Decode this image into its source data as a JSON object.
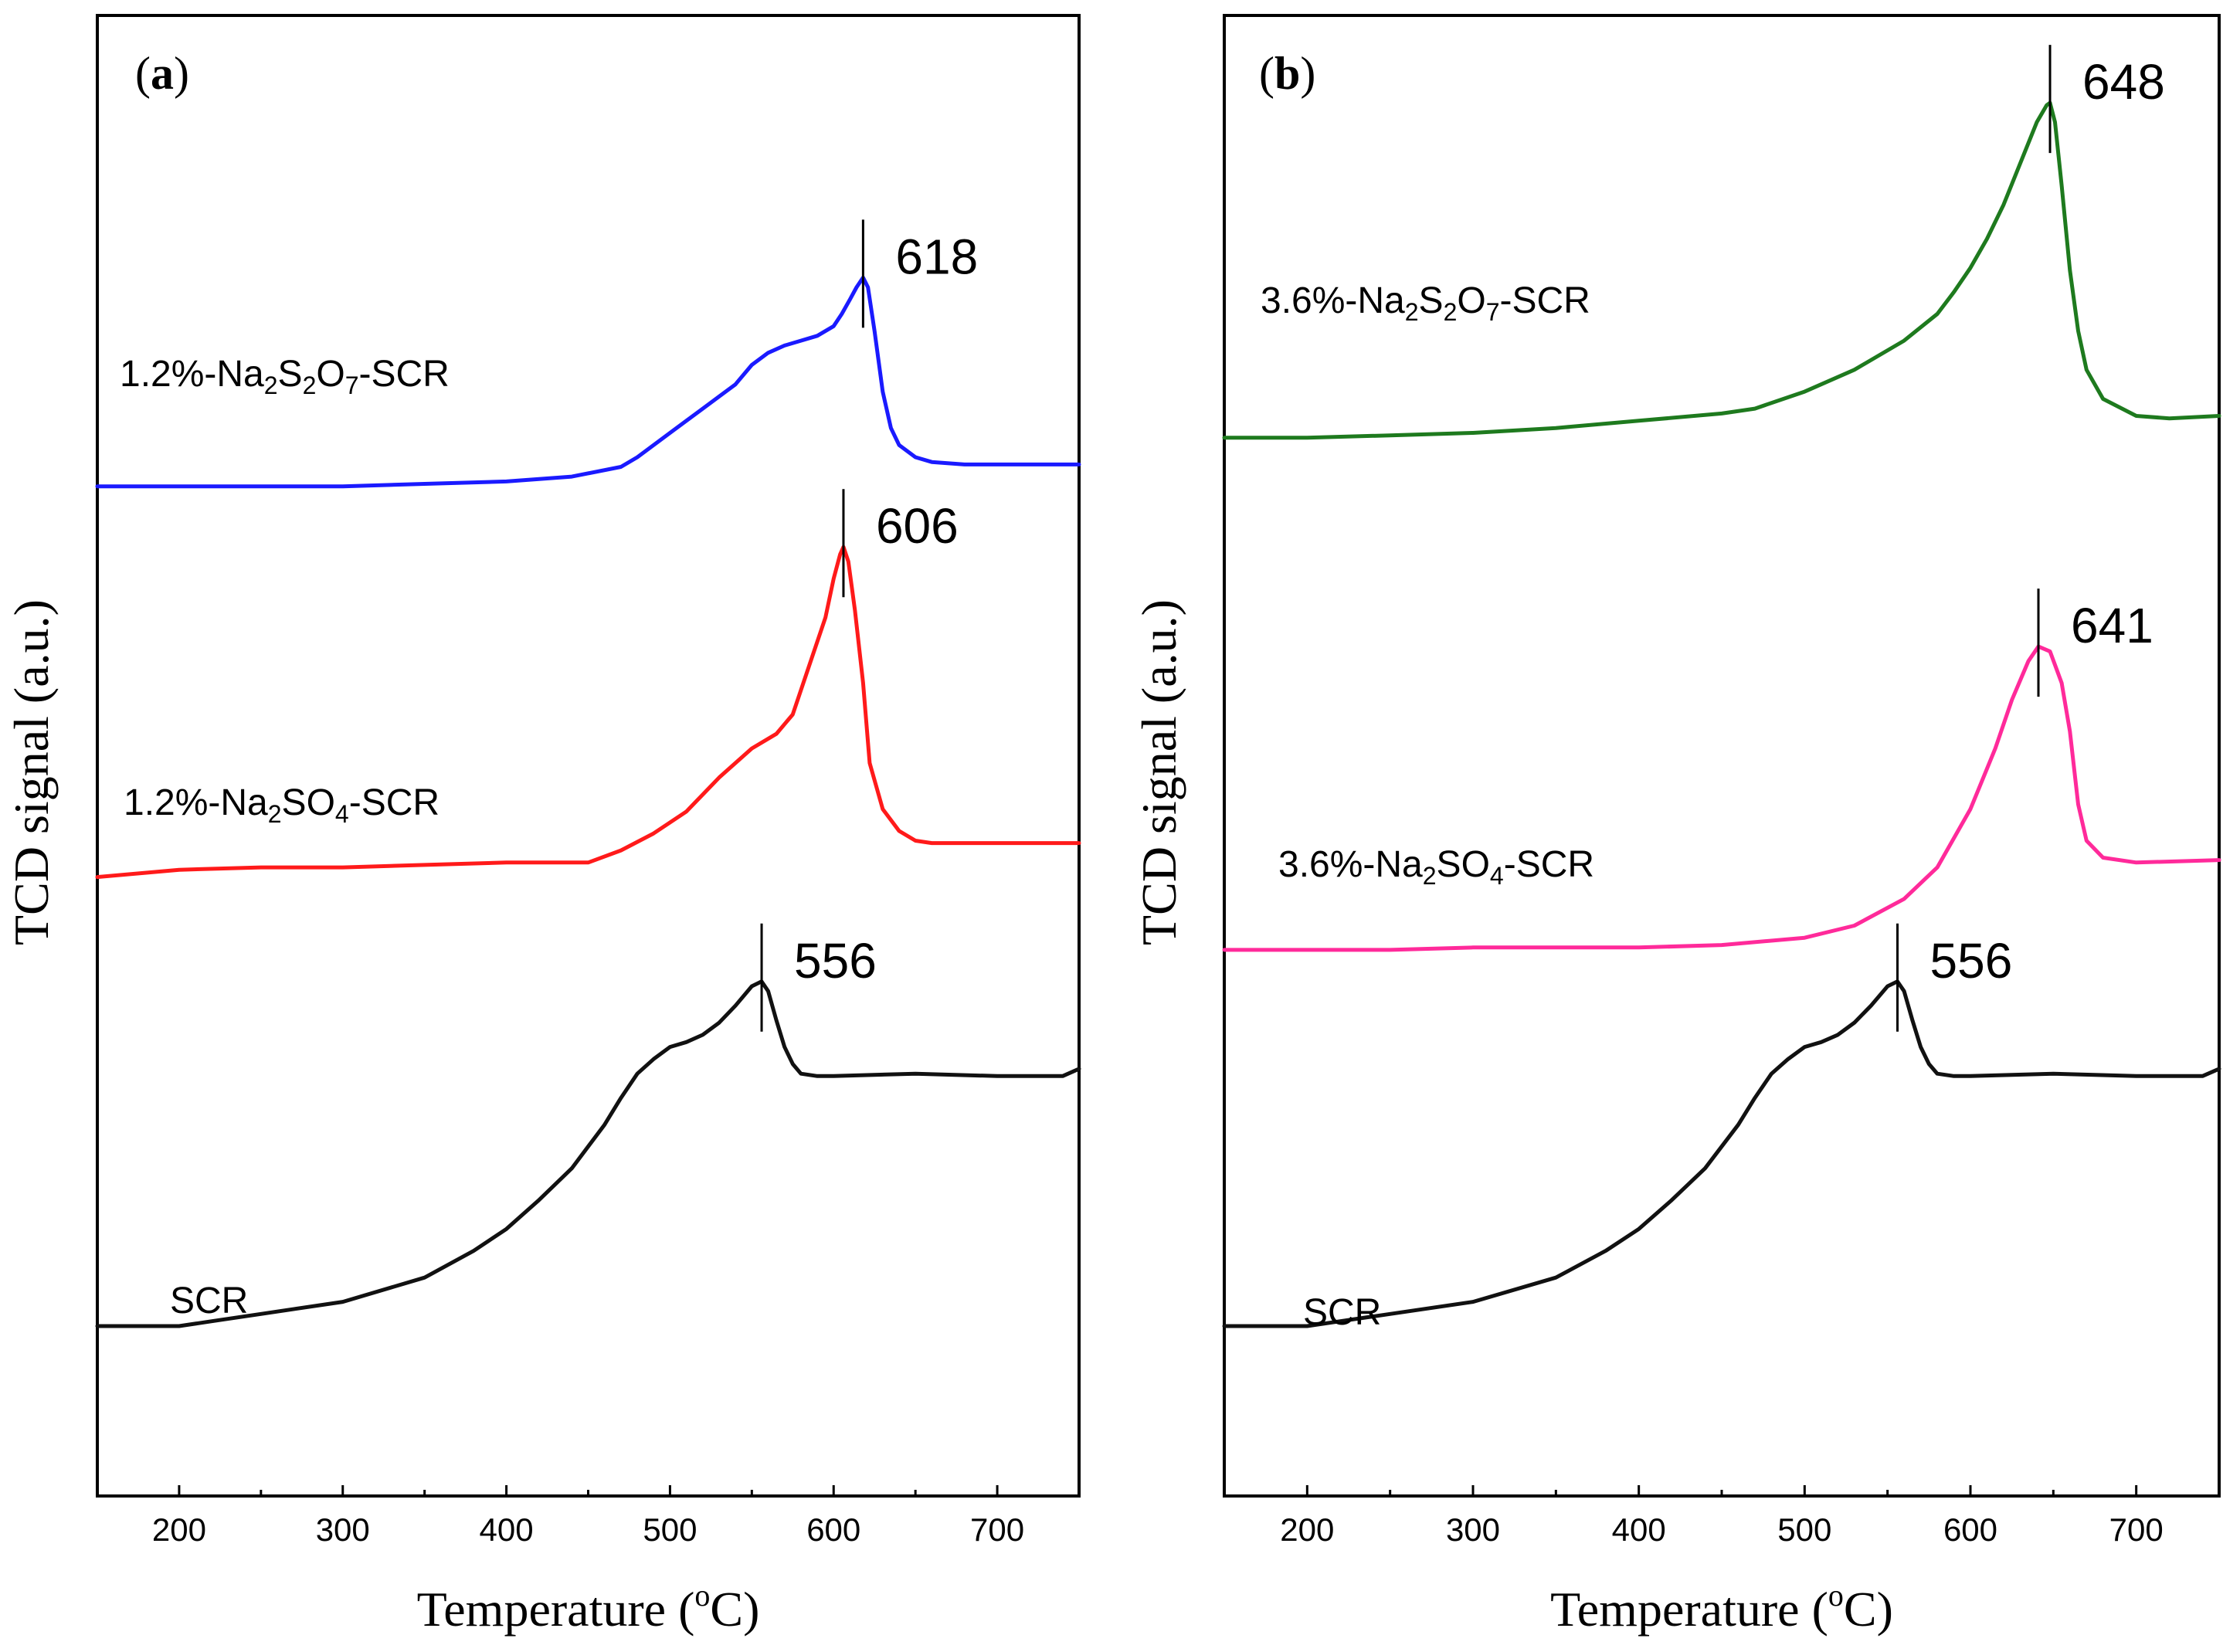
{
  "chart_data": [
    {
      "type": "line",
      "panel_label": "a",
      "xlabel": "Temperature (oC)",
      "xlabel_main": "Temperature (",
      "xlabel_sup": "o",
      "xlabel_end": "C)",
      "ylabel": "TCD signal (a.u.)",
      "xlim": [
        150,
        750
      ],
      "xticks": [
        "200",
        "300",
        "400",
        "500",
        "600",
        "700"
      ],
      "y_units": "arbitrary (stacked, offset)",
      "series": [
        {
          "name": "1.2%-Na2S2O7-SCR",
          "label_parts": [
            [
              "1.2%-Na",
              ""
            ],
            [
              "2",
              "sub"
            ],
            [
              "S",
              ""
            ],
            [
              "2",
              "sub"
            ],
            [
              "O",
              ""
            ],
            [
              "7",
              "sub"
            ],
            [
              "-SCR",
              ""
            ]
          ],
          "color": "#1a1aff",
          "peak_label": "618",
          "peak_x": 618,
          "x": [
            150,
            200,
            250,
            300,
            350,
            400,
            440,
            470,
            480,
            500,
            520,
            540,
            550,
            560,
            570,
            580,
            590,
            600,
            605,
            610,
            614,
            618,
            621,
            625,
            630,
            635,
            640,
            650,
            660,
            680,
            700,
            720,
            750
          ],
          "y": [
            3.86,
            3.86,
            3.86,
            3.86,
            3.87,
            3.88,
            3.9,
            3.94,
            3.98,
            4.08,
            4.18,
            4.28,
            4.36,
            4.41,
            4.44,
            4.46,
            4.48,
            4.52,
            4.57,
            4.63,
            4.68,
            4.72,
            4.68,
            4.5,
            4.25,
            4.1,
            4.03,
            3.98,
            3.96,
            3.95,
            3.95,
            3.95,
            3.95
          ]
        },
        {
          "name": "1.2%-Na2SO4-SCR",
          "label_parts": [
            [
              "1.2%-Na",
              ""
            ],
            [
              "2",
              "sub"
            ],
            [
              "SO",
              ""
            ],
            [
              "4",
              "sub"
            ],
            [
              "-SCR",
              ""
            ]
          ],
          "color": "#ff1a1a",
          "peak_label": "606",
          "peak_x": 606,
          "x": [
            150,
            200,
            250,
            300,
            350,
            400,
            450,
            470,
            490,
            510,
            530,
            550,
            565,
            575,
            585,
            595,
            600,
            604,
            606,
            609,
            613,
            618,
            622,
            630,
            640,
            650,
            660,
            700,
            750
          ],
          "y": [
            2.25,
            2.28,
            2.29,
            2.29,
            2.3,
            2.31,
            2.31,
            2.36,
            2.43,
            2.52,
            2.66,
            2.78,
            2.84,
            2.92,
            3.12,
            3.32,
            3.48,
            3.58,
            3.61,
            3.55,
            3.35,
            3.05,
            2.72,
            2.53,
            2.44,
            2.4,
            2.39,
            2.39,
            2.39
          ]
        },
        {
          "name": "SCR",
          "label_parts": [
            [
              "SCR",
              ""
            ]
          ],
          "color": "#111111",
          "peak_label": "556",
          "peak_x": 556,
          "x": [
            150,
            200,
            220,
            250,
            300,
            350,
            380,
            400,
            420,
            440,
            460,
            470,
            480,
            490,
            500,
            510,
            520,
            530,
            540,
            550,
            556,
            560,
            565,
            570,
            575,
            580,
            590,
            600,
            650,
            700,
            740,
            750
          ],
          "y": [
            0.4,
            0.4,
            0.42,
            0.45,
            0.5,
            0.6,
            0.71,
            0.8,
            0.92,
            1.05,
            1.23,
            1.34,
            1.44,
            1.5,
            1.55,
            1.57,
            1.6,
            1.65,
            1.72,
            1.8,
            1.82,
            1.78,
            1.66,
            1.55,
            1.48,
            1.44,
            1.43,
            1.43,
            1.44,
            1.43,
            1.43,
            1.46
          ]
        }
      ]
    },
    {
      "type": "line",
      "panel_label": "b",
      "xlabel": "Temperature (oC)",
      "xlabel_main": "Temperature (",
      "xlabel_sup": "o",
      "xlabel_end": "C)",
      "ylabel": "TCD signal (a.u.)",
      "xlim": [
        150,
        750
      ],
      "xticks": [
        "200",
        "300",
        "400",
        "500",
        "600",
        "700"
      ],
      "y_units": "arbitrary (stacked, offset)",
      "series": [
        {
          "name": "3.6%-Na2S2O7-SCR",
          "label_parts": [
            [
              "3.6%-Na",
              ""
            ],
            [
              "2",
              "sub"
            ],
            [
              "S",
              ""
            ],
            [
              "2",
              "sub"
            ],
            [
              "O",
              ""
            ],
            [
              "7",
              "sub"
            ],
            [
              "-SCR",
              ""
            ]
          ],
          "color": "#1e7a1e",
          "peak_label": "648",
          "peak_x": 648,
          "x": [
            150,
            200,
            250,
            300,
            350,
            400,
            450,
            470,
            500,
            530,
            560,
            580,
            590,
            600,
            610,
            620,
            630,
            640,
            646,
            648,
            651,
            655,
            660,
            665,
            670,
            680,
            700,
            720,
            750
          ],
          "y": [
            4.06,
            4.06,
            4.07,
            4.08,
            4.1,
            4.13,
            4.16,
            4.18,
            4.25,
            4.34,
            4.46,
            4.57,
            4.66,
            4.76,
            4.88,
            5.02,
            5.19,
            5.36,
            5.43,
            5.44,
            5.36,
            5.1,
            4.75,
            4.5,
            4.34,
            4.22,
            4.15,
            4.14,
            4.15
          ]
        },
        {
          "name": "3.6%-Na2SO4-SCR",
          "label_parts": [
            [
              "3.6%-Na",
              ""
            ],
            [
              "2",
              "sub"
            ],
            [
              "SO",
              ""
            ],
            [
              "4",
              "sub"
            ],
            [
              "-SCR",
              ""
            ]
          ],
          "color": "#ff2a9a",
          "peak_label": "641",
          "peak_x": 641,
          "x": [
            150,
            200,
            250,
            300,
            350,
            400,
            450,
            500,
            530,
            560,
            580,
            600,
            615,
            625,
            635,
            641,
            648,
            655,
            660,
            665,
            670,
            680,
            700,
            750
          ],
          "y": [
            1.95,
            1.95,
            1.95,
            1.96,
            1.96,
            1.96,
            1.97,
            2.0,
            2.05,
            2.16,
            2.29,
            2.53,
            2.78,
            2.98,
            3.14,
            3.2,
            3.18,
            3.05,
            2.85,
            2.55,
            2.4,
            2.33,
            2.31,
            2.32
          ]
        },
        {
          "name": "SCR",
          "label_parts": [
            [
              "SCR",
              ""
            ]
          ],
          "color": "#111111",
          "peak_label": "556",
          "peak_x": 556,
          "x": [
            150,
            200,
            220,
            250,
            300,
            350,
            380,
            400,
            420,
            440,
            460,
            470,
            480,
            490,
            500,
            510,
            520,
            530,
            540,
            550,
            556,
            560,
            565,
            570,
            575,
            580,
            590,
            600,
            650,
            700,
            740,
            750
          ],
          "y": [
            0.4,
            0.4,
            0.42,
            0.45,
            0.5,
            0.6,
            0.71,
            0.8,
            0.92,
            1.05,
            1.23,
            1.34,
            1.44,
            1.5,
            1.55,
            1.57,
            1.6,
            1.65,
            1.72,
            1.8,
            1.82,
            1.78,
            1.66,
            1.55,
            1.48,
            1.44,
            1.43,
            1.43,
            1.44,
            1.43,
            1.43,
            1.46
          ]
        }
      ]
    }
  ]
}
